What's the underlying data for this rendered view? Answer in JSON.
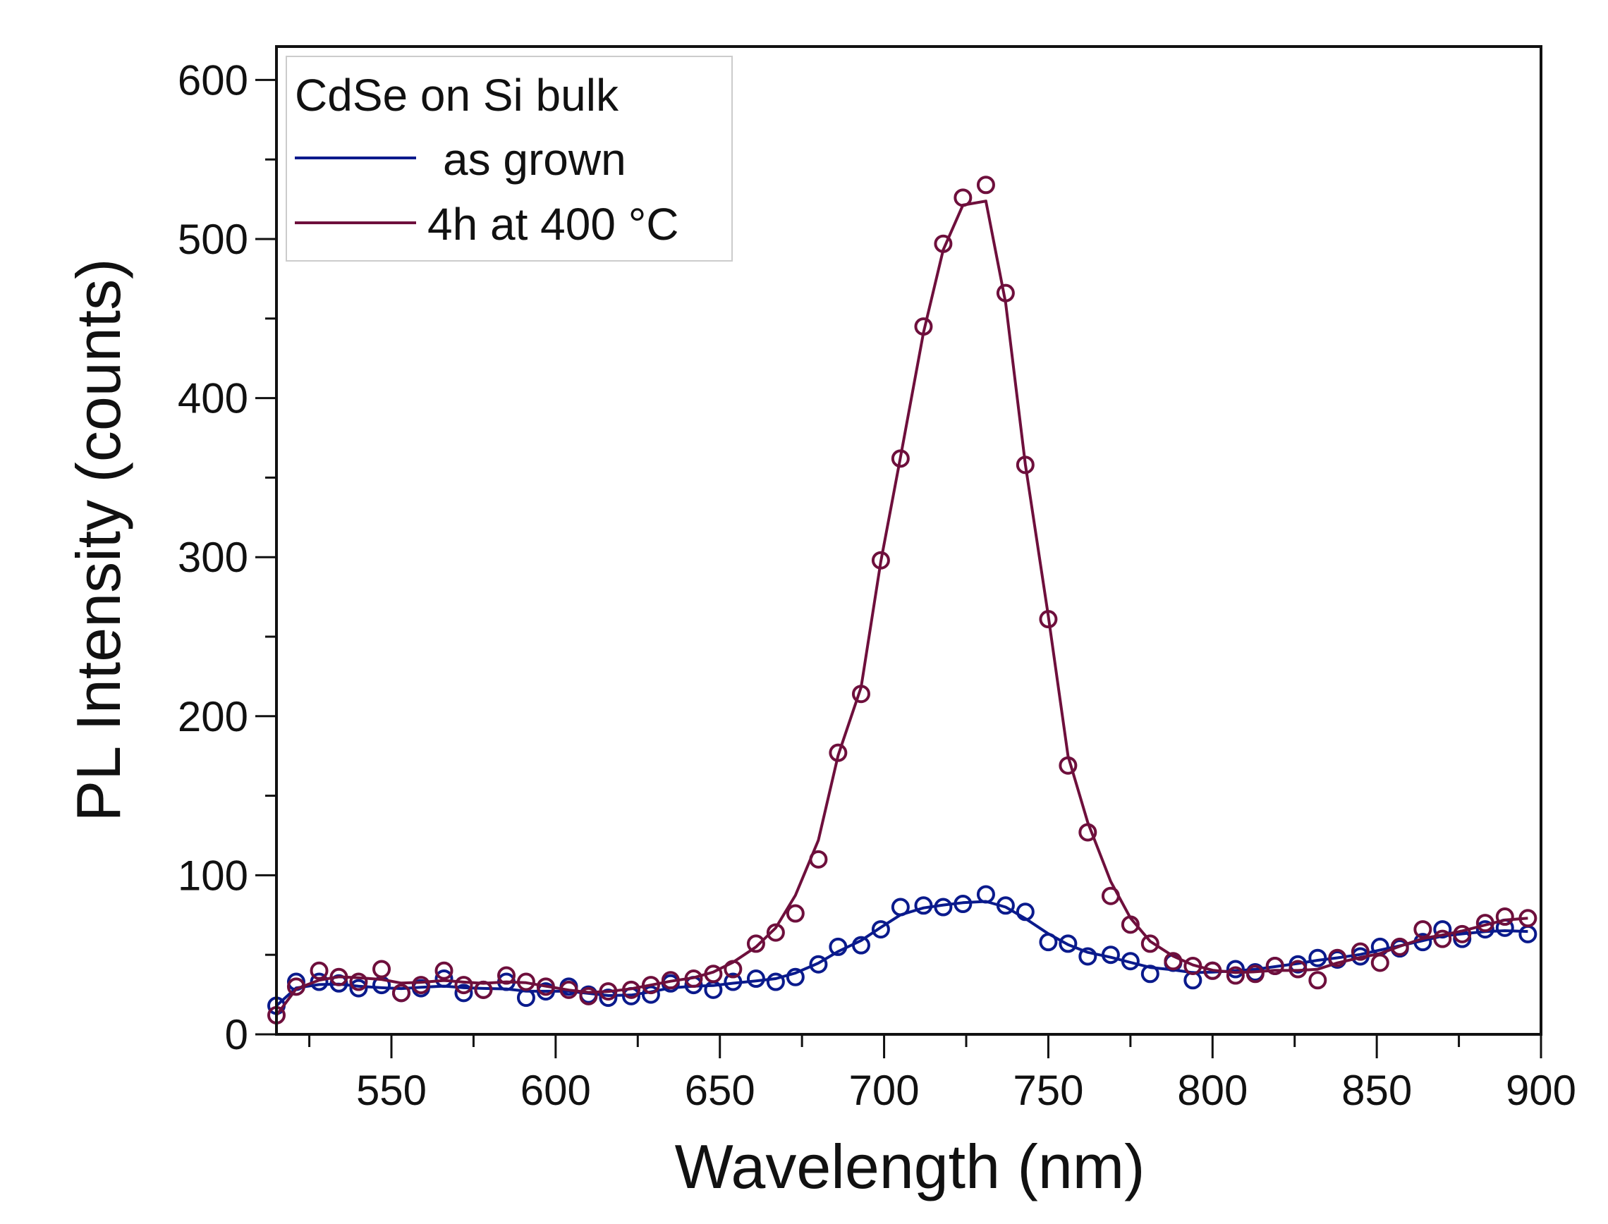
{
  "chart_data": {
    "type": "scatter",
    "title": "",
    "xlabel": "Wavelength (nm)",
    "ylabel": "PL Intensity (counts)",
    "xlim": [
      515,
      900
    ],
    "ylim": [
      0,
      621
    ],
    "xticks": [
      550,
      600,
      650,
      700,
      750,
      800,
      850,
      900
    ],
    "yticks": [
      0,
      100,
      200,
      300,
      400,
      500,
      600
    ],
    "grid": false,
    "legend": {
      "placement": "top-left",
      "title": "CdSe on Si bulk",
      "entries": [
        "as grown",
        "4h at 400 °C"
      ]
    },
    "x": [
      515,
      521,
      528,
      534,
      540,
      547,
      553,
      559,
      566,
      572,
      578,
      585,
      591,
      597,
      604,
      610,
      616,
      623,
      629,
      635,
      642,
      648,
      654,
      661,
      667,
      673,
      680,
      686,
      693,
      699,
      705,
      712,
      718,
      724,
      731,
      737,
      743,
      750,
      756,
      762,
      769,
      775,
      781,
      788,
      794,
      800,
      807,
      813,
      819,
      826,
      832,
      838,
      845,
      851,
      857,
      864,
      870,
      876,
      883,
      889,
      896
    ],
    "series": [
      {
        "name": "as grown",
        "color": "#0a1a8c",
        "values": [
          18,
          33,
          33,
          32,
          29,
          31,
          26,
          29,
          35,
          26,
          28,
          33,
          23,
          27,
          30,
          25,
          23,
          24,
          25,
          32,
          31,
          28,
          33,
          35,
          33,
          36,
          44,
          55,
          56,
          66,
          80,
          81,
          80,
          82,
          88,
          81,
          77,
          58,
          57,
          49,
          50,
          46,
          38,
          45,
          34,
          40,
          41,
          39,
          43,
          44,
          48,
          47,
          49,
          55,
          54,
          58,
          66,
          60,
          66,
          67,
          63
        ]
      },
      {
        "name": "4h at 400 °C",
        "color": "#6e0f3c",
        "values": [
          12,
          30,
          40,
          36,
          33,
          41,
          26,
          31,
          40,
          31,
          28,
          37,
          33,
          30,
          28,
          24,
          27,
          28,
          31,
          34,
          35,
          38,
          41,
          57,
          64,
          76,
          110,
          177,
          214,
          298,
          362,
          445,
          497,
          526,
          534,
          466,
          358,
          261,
          169,
          127,
          87,
          69,
          57,
          46,
          43,
          40,
          37,
          38,
          43,
          41,
          34,
          48,
          52,
          45,
          55,
          66,
          60,
          63,
          70,
          74,
          73
        ]
      }
    ]
  }
}
